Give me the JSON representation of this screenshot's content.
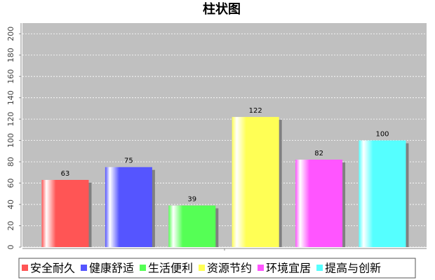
{
  "chart_data": {
    "type": "bar",
    "title": "柱状图",
    "series": [
      {
        "name": "安全耐久",
        "color": "#ff5555",
        "values": [
          63
        ]
      },
      {
        "name": "健康舒适",
        "color": "#5555ff",
        "values": [
          75
        ]
      },
      {
        "name": "生活便利",
        "color": "#55ff55",
        "values": [
          39
        ]
      },
      {
        "name": "资源节约",
        "color": "#ffff55",
        "values": [
          122
        ]
      },
      {
        "name": "环境宜居",
        "color": "#ff55ff",
        "values": [
          82
        ]
      },
      {
        "name": "提高与创新",
        "color": "#55ffff",
        "values": [
          100
        ]
      }
    ],
    "ylim": [
      0,
      210
    ],
    "yticks": [
      0,
      20,
      40,
      60,
      80,
      100,
      120,
      140,
      160,
      180,
      200
    ],
    "grid": true,
    "legend": "bottom"
  }
}
